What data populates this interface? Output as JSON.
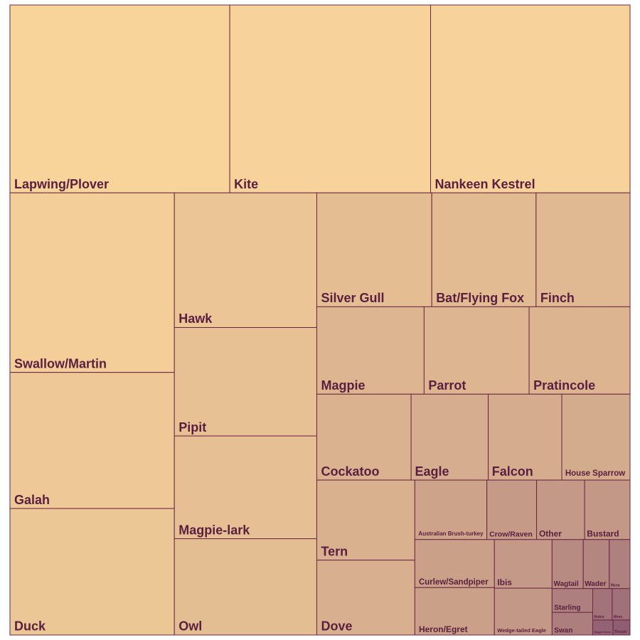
{
  "chart_data": {
    "type": "treemap",
    "title": "",
    "colors": {
      "light": "#f8d49b",
      "dark": "#8f5d72",
      "border": "#6b2742",
      "label": "#5a1f3e"
    },
    "items": [
      {
        "name": "Lapwing/Plover",
        "value": 8100
      },
      {
        "name": "Kite",
        "value": 7400
      },
      {
        "name": "Nankeen Kestrel",
        "value": 7350
      },
      {
        "name": "Swallow/Martin",
        "value": 5790
      },
      {
        "name": "Galah",
        "value": 4390
      },
      {
        "name": "Duck",
        "value": 4080
      },
      {
        "name": "Hawk",
        "value": 3760
      },
      {
        "name": "Pipit",
        "value": 3030
      },
      {
        "name": "Magpie-lark",
        "value": 2870
      },
      {
        "name": "Owl",
        "value": 2690
      },
      {
        "name": "Silver Gull",
        "value": 2570
      },
      {
        "name": "Bat/Flying Fox",
        "value": 2330
      },
      {
        "name": "Finch",
        "value": 2100
      },
      {
        "name": "Magpie",
        "value": 1840
      },
      {
        "name": "Parrot",
        "value": 1800
      },
      {
        "name": "Pratincole",
        "value": 1730
      },
      {
        "name": "Cockatoo",
        "value": 1590
      },
      {
        "name": "Eagle",
        "value": 1300
      },
      {
        "name": "Falcon",
        "value": 1240
      },
      {
        "name": "House Sparrow",
        "value": 1150
      },
      {
        "name": "Tern",
        "value": 1540
      },
      {
        "name": "Dove",
        "value": 1440
      },
      {
        "name": "Australian Brush-turkey",
        "value": 840
      },
      {
        "name": "Crow/Raven",
        "value": 580
      },
      {
        "name": "Other",
        "value": 560
      },
      {
        "name": "Bustard",
        "value": 530
      },
      {
        "name": "Curlew/Sandpiper",
        "value": 750
      },
      {
        "name": "Heron/Egret",
        "value": 740
      },
      {
        "name": "Ibis",
        "value": 550
      },
      {
        "name": "Wedge-tailed Eagle",
        "value": 530
      },
      {
        "name": "Wagtail",
        "value": 300
      },
      {
        "name": "Wader",
        "value": 250
      },
      {
        "name": "Myna",
        "value": 200
      },
      {
        "name": "Starling",
        "value": 190
      },
      {
        "name": "Swan",
        "value": 180
      },
      {
        "name": "Robin",
        "value": 120
      },
      {
        "name": "Wren",
        "value": 110
      },
      {
        "name": "Magpie Goose",
        "value": 60
      },
      {
        "name": "Thrush",
        "value": 50
      }
    ]
  }
}
